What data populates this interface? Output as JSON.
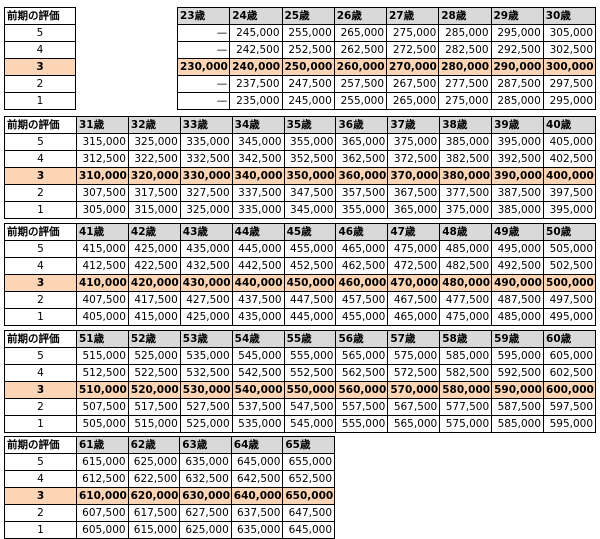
{
  "label_header": "前期の評価",
  "grades": [
    "5",
    "4",
    "3",
    "2",
    "1"
  ],
  "blocks": [
    {
      "ages": [
        "23歳",
        "24歳",
        "25歳",
        "26歳",
        "27歳",
        "28歳",
        "29歳",
        "30歳"
      ],
      "rows": [
        [
          "—",
          "245,000",
          "255,000",
          "265,000",
          "275,000",
          "285,000",
          "295,000",
          "305,000"
        ],
        [
          "—",
          "242,500",
          "252,500",
          "262,500",
          "272,500",
          "282,500",
          "292,500",
          "302,500"
        ],
        [
          "230,000",
          "240,000",
          "250,000",
          "260,000",
          "270,000",
          "280,000",
          "290,000",
          "300,000"
        ],
        [
          "—",
          "237,500",
          "247,500",
          "257,500",
          "267,500",
          "277,500",
          "287,500",
          "297,500"
        ],
        [
          "—",
          "235,000",
          "245,000",
          "255,000",
          "265,000",
          "275,000",
          "285,000",
          "295,000"
        ]
      ]
    },
    {
      "ages": [
        "31歳",
        "32歳",
        "33歳",
        "34歳",
        "35歳",
        "36歳",
        "37歳",
        "38歳",
        "39歳",
        "40歳"
      ],
      "rows": [
        [
          "315,000",
          "325,000",
          "335,000",
          "345,000",
          "355,000",
          "365,000",
          "375,000",
          "385,000",
          "395,000",
          "405,000"
        ],
        [
          "312,500",
          "322,500",
          "332,500",
          "342,500",
          "352,500",
          "362,500",
          "372,500",
          "382,500",
          "392,500",
          "402,500"
        ],
        [
          "310,000",
          "320,000",
          "330,000",
          "340,000",
          "350,000",
          "360,000",
          "370,000",
          "380,000",
          "390,000",
          "400,000"
        ],
        [
          "307,500",
          "317,500",
          "327,500",
          "337,500",
          "347,500",
          "357,500",
          "367,500",
          "377,500",
          "387,500",
          "397,500"
        ],
        [
          "305,000",
          "315,000",
          "325,000",
          "335,000",
          "345,000",
          "355,000",
          "365,000",
          "375,000",
          "385,000",
          "395,000"
        ]
      ]
    },
    {
      "ages": [
        "41歳",
        "42歳",
        "43歳",
        "44歳",
        "45歳",
        "46歳",
        "47歳",
        "48歳",
        "49歳",
        "50歳"
      ],
      "rows": [
        [
          "415,000",
          "425,000",
          "435,000",
          "445,000",
          "455,000",
          "465,000",
          "475,000",
          "485,000",
          "495,000",
          "505,000"
        ],
        [
          "412,500",
          "422,500",
          "432,500",
          "442,500",
          "452,500",
          "462,500",
          "472,500",
          "482,500",
          "492,500",
          "502,500"
        ],
        [
          "410,000",
          "420,000",
          "430,000",
          "440,000",
          "450,000",
          "460,000",
          "470,000",
          "480,000",
          "490,000",
          "500,000"
        ],
        [
          "407,500",
          "417,500",
          "427,500",
          "437,500",
          "447,500",
          "457,500",
          "467,500",
          "477,500",
          "487,500",
          "497,500"
        ],
        [
          "405,000",
          "415,000",
          "425,000",
          "435,000",
          "445,000",
          "455,000",
          "465,000",
          "475,000",
          "485,000",
          "495,000"
        ]
      ]
    },
    {
      "ages": [
        "51歳",
        "52歳",
        "53歳",
        "54歳",
        "55歳",
        "56歳",
        "57歳",
        "58歳",
        "59歳",
        "60歳"
      ],
      "rows": [
        [
          "515,000",
          "525,000",
          "535,000",
          "545,000",
          "555,000",
          "565,000",
          "575,000",
          "585,000",
          "595,000",
          "605,000"
        ],
        [
          "512,500",
          "522,500",
          "532,500",
          "542,500",
          "552,500",
          "562,500",
          "572,500",
          "582,500",
          "592,500",
          "602,500"
        ],
        [
          "510,000",
          "520,000",
          "530,000",
          "540,000",
          "550,000",
          "560,000",
          "570,000",
          "580,000",
          "590,000",
          "600,000"
        ],
        [
          "507,500",
          "517,500",
          "527,500",
          "537,500",
          "547,500",
          "557,500",
          "567,500",
          "577,500",
          "587,500",
          "597,500"
        ],
        [
          "505,000",
          "515,000",
          "525,000",
          "535,000",
          "545,000",
          "555,000",
          "565,000",
          "575,000",
          "585,000",
          "595,000"
        ]
      ]
    },
    {
      "ages": [
        "61歳",
        "62歳",
        "63歳",
        "64歳",
        "65歳"
      ],
      "rows": [
        [
          "615,000",
          "625,000",
          "635,000",
          "645,000",
          "655,000"
        ],
        [
          "612,500",
          "622,500",
          "632,500",
          "642,500",
          "652,500"
        ],
        [
          "610,000",
          "620,000",
          "630,000",
          "640,000",
          "650,000"
        ],
        [
          "607,500",
          "617,500",
          "627,500",
          "637,500",
          "647,500"
        ],
        [
          "605,000",
          "615,000",
          "625,000",
          "635,000",
          "645,000"
        ]
      ]
    }
  ],
  "colors": {
    "header_bg": "#d9d9d9",
    "highlight_bg": "#fbd5b5"
  }
}
